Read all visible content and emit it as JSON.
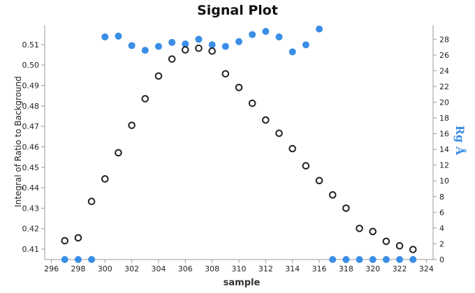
{
  "chart_data": {
    "type": "scatter",
    "title": "Signal Plot",
    "xlabel": "sample",
    "ylabel": "Integral of Ratio to Background",
    "y2label": "Rg Å",
    "xlim": [
      295.5,
      324.5
    ],
    "ylim": [
      0.4049,
      0.5195
    ],
    "y2lim": [
      0,
      29.8
    ],
    "x_ticks": [
      296,
      298,
      300,
      302,
      304,
      306,
      308,
      310,
      312,
      314,
      316,
      318,
      320,
      322,
      324
    ],
    "y_ticks": [
      0.41,
      0.42,
      0.43,
      0.44,
      0.45,
      0.46,
      0.47,
      0.48,
      0.49,
      0.5,
      0.51
    ],
    "y2_ticks": [
      0,
      2,
      4,
      6,
      8,
      10,
      12,
      14,
      16,
      18,
      20,
      22,
      24,
      26,
      28
    ],
    "grid": false,
    "colors": {
      "integral": "#222222",
      "rg": "#3a8ee6",
      "axis": "#999999"
    },
    "series": [
      {
        "name": "Integral of Ratio to Background",
        "axis": "left",
        "marker": "open-circle",
        "x": [
          297,
          298,
          299,
          300,
          301,
          302,
          303,
          304,
          305,
          306,
          307,
          308,
          309,
          310,
          311,
          312,
          313,
          314,
          315,
          316,
          317,
          318,
          319,
          320,
          321,
          322,
          323
        ],
        "values": [
          0.4141,
          0.4155,
          0.4333,
          0.4443,
          0.4571,
          0.4705,
          0.4835,
          0.4946,
          0.5029,
          0.5074,
          0.5082,
          0.5068,
          0.4957,
          0.489,
          0.4813,
          0.4731,
          0.4666,
          0.4591,
          0.4507,
          0.4435,
          0.4365,
          0.43,
          0.4201,
          0.4186,
          0.4138,
          0.4116,
          0.4098
        ]
      },
      {
        "name": "Rg Å",
        "axis": "right",
        "marker": "filled-circle",
        "x": [
          297,
          298,
          299,
          300,
          301,
          302,
          303,
          304,
          305,
          306,
          307,
          308,
          309,
          310,
          311,
          312,
          313,
          314,
          315,
          316,
          317,
          318,
          319,
          320,
          321,
          322,
          323
        ],
        "values": [
          0,
          0,
          0,
          28.3,
          28.4,
          27.2,
          26.6,
          27.1,
          27.6,
          27.4,
          28.0,
          27.3,
          27.1,
          27.7,
          28.6,
          29.0,
          28.3,
          26.4,
          27.3,
          29.3,
          0,
          0,
          0,
          0,
          0,
          0,
          0
        ]
      }
    ]
  }
}
